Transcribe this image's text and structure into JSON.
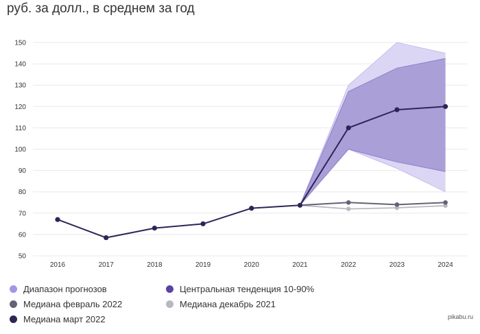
{
  "title": "руб. за долл., в среднем за год",
  "watermark": "pikabu.ru",
  "colors": {
    "range_band": "#dcd6f5",
    "central_band": "#ab9fd8",
    "median_march": "#2e2458",
    "median_feb": "#636375",
    "median_dec": "#b8b8c0",
    "grid": "#e8e8e8",
    "range_legend": "#a594e4",
    "central_legend": "#5d41a8"
  },
  "legend": [
    {
      "label": "Диапазон прогнозов",
      "color": "#a594e4"
    },
    {
      "label": "Центральная тенденция 10-90%",
      "color": "#5d41a8"
    },
    {
      "label": "Медиана февраль 2022",
      "color": "#636375"
    },
    {
      "label": "Медиана декабрь 2021",
      "color": "#b8b8c0"
    },
    {
      "label": "Медиана март 2022",
      "color": "#2e2458"
    }
  ],
  "chart_data": {
    "type": "line",
    "title": "руб. за долл., в среднем за год",
    "x": [
      "2016",
      "2017",
      "2018",
      "2019",
      "2020",
      "2021",
      "2022",
      "2023",
      "2024"
    ],
    "ylim": [
      50,
      150
    ],
    "yticks": [
      50,
      60,
      70,
      80,
      90,
      100,
      110,
      120,
      130,
      140,
      150
    ],
    "grid": true,
    "legend_position": "bottom",
    "series": [
      {
        "name": "Медиана март 2022",
        "x": [
          "2016",
          "2017",
          "2018",
          "2019",
          "2020",
          "2021",
          "2022",
          "2023",
          "2024"
        ],
        "values": [
          67,
          58.5,
          63,
          65,
          72.3,
          73.7,
          110,
          118.5,
          120
        ]
      },
      {
        "name": "Медиана февраль 2022",
        "x": [
          "2021",
          "2022",
          "2023",
          "2024"
        ],
        "values": [
          73.7,
          75,
          74,
          75
        ]
      },
      {
        "name": "Медиана декабрь 2021",
        "x": [
          "2021",
          "2022",
          "2023",
          "2024"
        ],
        "values": [
          73.7,
          72,
          72.5,
          73.5
        ]
      }
    ],
    "bands": [
      {
        "name": "Диапазон прогнозов",
        "x": [
          "2021",
          "2022",
          "2023",
          "2024"
        ],
        "upper": [
          73.7,
          130,
          150,
          145
        ],
        "lower": [
          73.7,
          100,
          91,
          80
        ]
      },
      {
        "name": "Центральная тенденция 10-90%",
        "x": [
          "2021",
          "2022",
          "2023",
          "2024"
        ],
        "upper": [
          73.7,
          127,
          138,
          142.5
        ],
        "lower": [
          73.7,
          100,
          94,
          89.5
        ]
      }
    ]
  }
}
